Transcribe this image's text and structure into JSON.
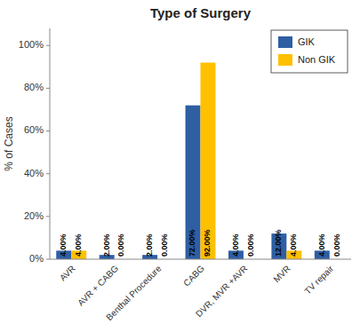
{
  "chart_data": {
    "type": "bar",
    "title": "Type of Surgery",
    "categories": [
      "AVR",
      "AVR + CABG",
      "Benthal Procedure",
      "CABG",
      "DVR, MVR +AVR",
      "MVR",
      "TV repair"
    ],
    "series": [
      {
        "name": "GIK",
        "color": "#2E5FA3",
        "values": [
          4.0,
          2.0,
          2.0,
          72.0,
          4.0,
          12.0,
          4.0
        ],
        "value_labels": [
          "4.00%",
          "2.00%",
          "2.00%",
          "72.00%",
          "4.00%",
          "12.00%",
          "4.00%"
        ]
      },
      {
        "name": "Non GIK",
        "color": "#FFC000",
        "values": [
          4.0,
          0.0,
          0.0,
          92.0,
          0.0,
          4.0,
          0.0
        ],
        "value_labels": [
          "4.00%",
          "0.00%",
          "0.00%",
          "92.00%",
          "0.00%",
          "4.00%",
          "0.00%"
        ]
      }
    ],
    "ylabel": "% of Cases",
    "ylim": [
      0,
      108
    ],
    "yticks": [
      {
        "value": 0,
        "label": "0%"
      },
      {
        "value": 20,
        "label": "20%"
      },
      {
        "value": 40,
        "label": "40%"
      },
      {
        "value": 60,
        "label": "60%"
      },
      {
        "value": 80,
        "label": "80%"
      },
      {
        "value": 100,
        "label": "100%"
      }
    ],
    "grid": false,
    "legend": "upper right",
    "data_labels": true
  }
}
